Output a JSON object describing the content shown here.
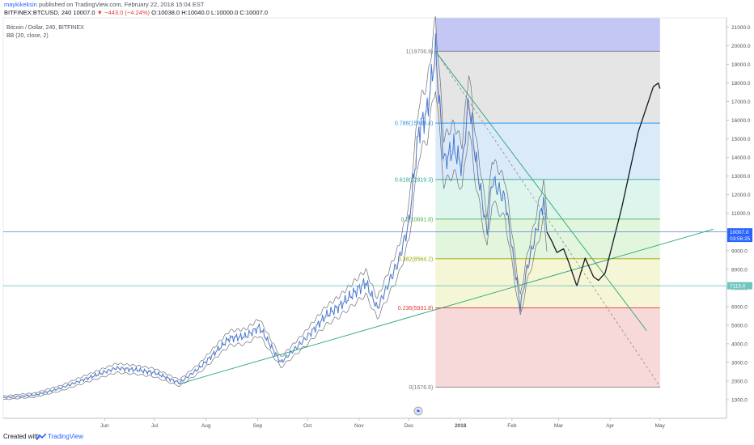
{
  "header": {
    "author": "maykikeksin",
    "published_text": "published on TradingView.com, February 22, 2018 15:04 EST",
    "symbol": "BITFINEX:BTCUSD, 240",
    "last": "10007.0",
    "change": "▼ −443.0 (−4.24%)",
    "ohlc": "O:10038.0 H:10040.0 L:10000.0 C:10007.0"
  },
  "legend": {
    "series_title": "Bitcoin / Dollar, 240, BITFINEX",
    "indicator": "BB (20, close, 2)"
  },
  "footer": {
    "created_with": "Created with",
    "brand": "TradingView"
  },
  "colors": {
    "price": "#3b73d6",
    "bands": "#6f6f7a",
    "trendline": "#27a57a",
    "projection": "#131722",
    "last_price_tag": "#2962ff",
    "level_tag": "#6fc7c0"
  },
  "chart_data": {
    "type": "line",
    "y_scale": "linear",
    "ylim": [
      0,
      21500
    ],
    "y_ticks": [
      1000,
      2000,
      3000,
      4000,
      5000,
      6000,
      7000,
      8000,
      9000,
      10000,
      11000,
      12000,
      13000,
      14000,
      15000,
      16000,
      17000,
      18000,
      19000,
      20000,
      21000
    ],
    "y_tick_labels": [
      "1000.0",
      "2000.0",
      "3000.0",
      "4000.0",
      "5000.0",
      "6000.0",
      "7000.0",
      "8000.0",
      "9000.0",
      "10000.0",
      "11000.0",
      "12000.0",
      "13000.0",
      "14000.0",
      "15000.0",
      "16000.0",
      "17000.0",
      "18000.0",
      "19000.0",
      "20000.0",
      "21000.0"
    ],
    "x_ticks": [
      "2017-06-01",
      "2017-07-01",
      "2017-08-01",
      "2017-09-01",
      "2017-10-01",
      "2017-11-01",
      "2017-12-01",
      "2018-01-01",
      "2018-02-01",
      "2018-03-01",
      "2018-04-01",
      "2018-05-01"
    ],
    "x_tick_labels": [
      "Jun",
      "Jul",
      "Aug",
      "Sep",
      "Oct",
      "Nov",
      "Dec",
      "2018",
      "Feb",
      "Mar",
      "Apr",
      "May"
    ],
    "x_range": [
      "2017-04-01",
      "2018-06-10"
    ],
    "price_series": {
      "name": "Bitcoin / Dollar",
      "points": [
        [
          "2017-04-01",
          1100
        ],
        [
          "2017-04-20",
          1250
        ],
        [
          "2017-05-05",
          1600
        ],
        [
          "2017-05-20",
          2100
        ],
        [
          "2017-06-08",
          2700
        ],
        [
          "2017-06-20",
          2600
        ],
        [
          "2017-07-01",
          2450
        ],
        [
          "2017-07-16",
          1900
        ],
        [
          "2017-07-28",
          2700
        ],
        [
          "2017-08-15",
          4300
        ],
        [
          "2017-08-25",
          4400
        ],
        [
          "2017-09-02",
          4900
        ],
        [
          "2017-09-15",
          3000
        ],
        [
          "2017-09-30",
          4300
        ],
        [
          "2017-10-12",
          5500
        ],
        [
          "2017-10-20",
          6000
        ],
        [
          "2017-11-05",
          7300
        ],
        [
          "2017-11-12",
          5900
        ],
        [
          "2017-11-25",
          8500
        ],
        [
          "2017-12-01",
          10500
        ],
        [
          "2017-12-07",
          15500
        ],
        [
          "2017-12-12",
          16500
        ],
        [
          "2017-12-17",
          19700
        ],
        [
          "2017-12-22",
          13800
        ],
        [
          "2017-12-28",
          14500
        ],
        [
          "2018-01-02",
          13500
        ],
        [
          "2018-01-06",
          17100
        ],
        [
          "2018-01-10",
          14000
        ],
        [
          "2018-01-17",
          10000
        ],
        [
          "2018-01-20",
          12800
        ],
        [
          "2018-01-28",
          11700
        ],
        [
          "2018-02-02",
          8500
        ],
        [
          "2018-02-06",
          6000
        ],
        [
          "2018-02-10",
          8000
        ],
        [
          "2018-02-15",
          9800
        ],
        [
          "2018-02-20",
          11700
        ],
        [
          "2018-02-22",
          10007
        ]
      ]
    },
    "bollinger_bands": {
      "name": "BB (20, close, 2)",
      "period": 20,
      "source": "close",
      "stddev": 2
    },
    "fib_retracement": {
      "high": 19706.9,
      "low": 1676.6,
      "levels": [
        {
          "ratio": 1,
          "label": "1(19706.9)",
          "price": 19706.9,
          "color": "#787b86"
        },
        {
          "ratio": 0.786,
          "label": "0.786(15848.4)",
          "price": 15848.4,
          "color": "#2196f3"
        },
        {
          "ratio": 0.618,
          "label": "0.618(12819.3)",
          "price": 12819.3,
          "color": "#26a69a"
        },
        {
          "ratio": 0.5,
          "label": "0.5(10691.8)",
          "price": 10691.8,
          "color": "#4caf50"
        },
        {
          "ratio": 0.382,
          "label": "0.382(8564.2)",
          "price": 8564.2,
          "color": "#9ba800"
        },
        {
          "ratio": 0.236,
          "label": "0.236(5931.8)",
          "price": 5931.8,
          "color": "#e53935"
        },
        {
          "ratio": 0,
          "label": "0(1676.6)",
          "price": 1676.6,
          "color": "#787b86"
        }
      ],
      "x_start": "2017-12-17",
      "x_end": "2018-05-01"
    },
    "trendlines": [
      {
        "name": "ascending support",
        "points": [
          [
            "2017-07-16",
            1850
          ],
          [
            "2018-06-02",
            10150
          ]
        ]
      },
      {
        "name": "descending resistance",
        "points": [
          [
            "2017-12-17",
            19700
          ],
          [
            "2018-04-23",
            4700
          ]
        ]
      },
      {
        "name": "descending dashed",
        "dashed": true,
        "points": [
          [
            "2017-12-17",
            19700
          ],
          [
            "2018-05-01",
            1700
          ]
        ]
      }
    ],
    "projection": {
      "points": [
        [
          "2018-02-22",
          10000
        ],
        [
          "2018-02-25",
          9500
        ],
        [
          "2018-02-28",
          8900
        ],
        [
          "2018-03-04",
          9100
        ],
        [
          "2018-03-07",
          8400
        ],
        [
          "2018-03-12",
          7100
        ],
        [
          "2018-03-17",
          8600
        ],
        [
          "2018-03-22",
          7600
        ],
        [
          "2018-03-25",
          7400
        ],
        [
          "2018-03-29",
          7800
        ],
        [
          "2018-04-08",
          11300
        ],
        [
          "2018-04-18",
          15400
        ],
        [
          "2018-04-27",
          17800
        ],
        [
          "2018-04-30",
          18000
        ],
        [
          "2018-05-01",
          17700
        ]
      ]
    },
    "price_tags": [
      {
        "value": 10007.0,
        "label": "10007.0",
        "sub_label": "03:56:25",
        "kind": "last"
      },
      {
        "value": 7115.0,
        "label": "7115.0",
        "kind": "level"
      }
    ]
  }
}
